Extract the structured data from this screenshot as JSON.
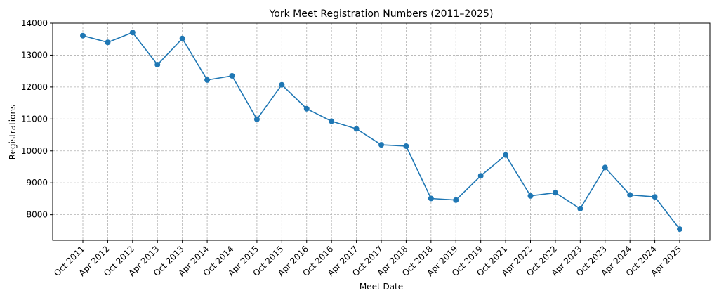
{
  "chart_data": {
    "type": "line",
    "title": "York Meet Registration Numbers (2011–2025)",
    "xlabel": "Meet Date",
    "ylabel": "Registrations",
    "ylim": [
      7200,
      14000
    ],
    "yticks": [
      8000,
      9000,
      10000,
      11000,
      12000,
      13000,
      14000
    ],
    "grid": true,
    "color": "#1f77b4",
    "categories": [
      "Oct 2011",
      "Apr 2012",
      "Oct 2012",
      "Apr 2013",
      "Oct 2013",
      "Apr 2014",
      "Oct 2014",
      "Apr 2015",
      "Oct 2015",
      "Apr 2016",
      "Oct 2016",
      "Apr 2017",
      "Oct 2017",
      "Apr 2018",
      "Oct 2018",
      "Apr 2019",
      "Oct 2019",
      "Oct 2021",
      "Apr 2022",
      "Oct 2022",
      "Apr 2023",
      "Oct 2023",
      "Apr 2024",
      "Oct 2024",
      "Apr 2025"
    ],
    "series": [
      {
        "values": [
          13610,
          13400,
          13710,
          12700,
          13520,
          12220,
          12350,
          10990,
          12070,
          11320,
          10930,
          10690,
          10190,
          10150,
          8510,
          8460,
          9220,
          9870,
          8590,
          8690,
          8190,
          9480,
          8620,
          8560,
          7550
        ]
      }
    ]
  }
}
